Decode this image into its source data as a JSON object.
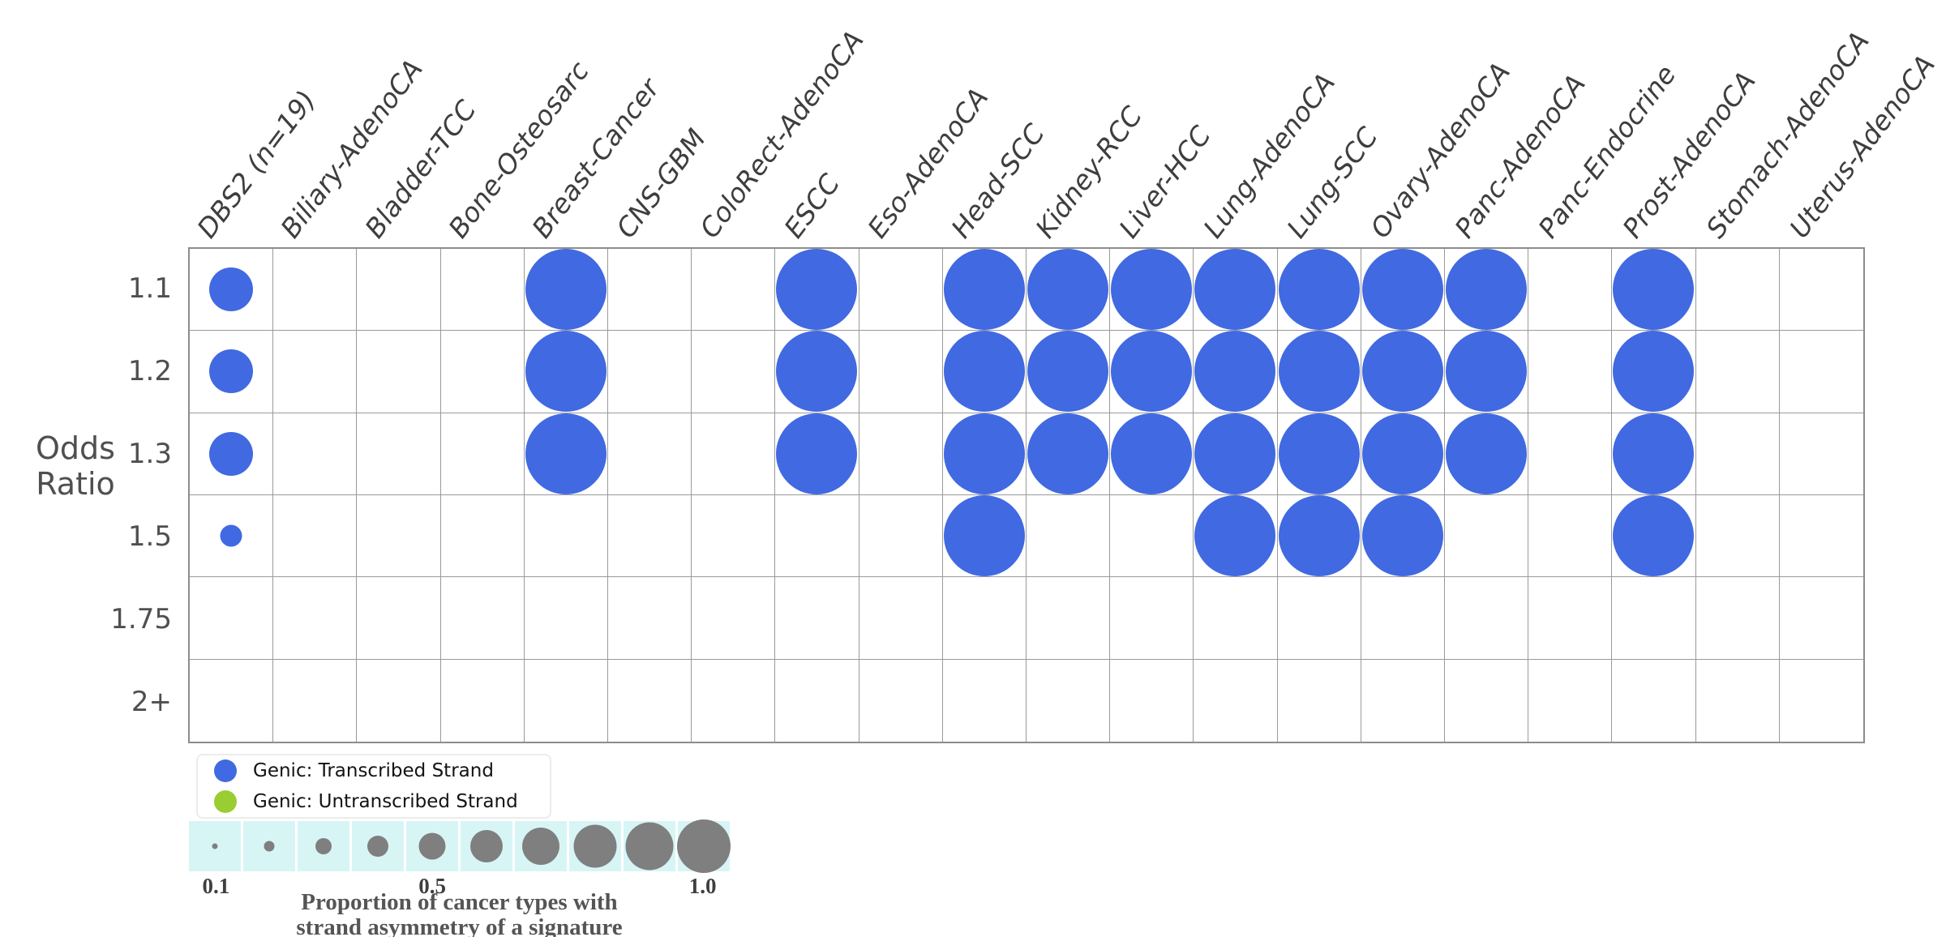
{
  "figure": {
    "ylabel_lines": [
      "Odds",
      "Ratio"
    ],
    "colors": {
      "transcribed": "#4169E1",
      "untranscribed": "#9ACD32",
      "size_circle": "#7F7F7F",
      "strip_bg": "#D8F5F6",
      "grid_line": "#9A9A9A",
      "grid_border": "#8C8C8C",
      "header_text": "#3E3E3E",
      "axis_text": "#4F4F4F",
      "caption_text": "#555555"
    }
  },
  "legend": {
    "items": [
      {
        "label": "Genic: Transcribed Strand",
        "color_key": "transcribed"
      },
      {
        "label": "Genic: Untranscribed Strand",
        "color_key": "untranscribed"
      }
    ]
  },
  "size_legend": {
    "values": [
      0.1,
      0.2,
      0.3,
      0.4,
      0.5,
      0.6,
      0.7,
      0.8,
      0.9,
      1.0
    ],
    "tick_labels": [
      {
        "text": "0.1",
        "index": 0
      },
      {
        "text": "0.5",
        "index": 4
      },
      {
        "text": "1.0",
        "index": 9
      }
    ],
    "caption_lines": [
      "Proportion of cancer types with",
      "strand asymmetry of a signature"
    ]
  },
  "chart_data": {
    "type": "bubble-matrix",
    "signature": "DBS2 (n=19)",
    "ylabel": "Odds Ratio",
    "bubble_series": "Genic: Transcribed Strand",
    "columns": [
      "DBS2 (n=19)",
      "Biliary-AdenoCA",
      "Bladder-TCC",
      "Bone-Osteosarc",
      "Breast-Cancer",
      "CNS-GBM",
      "ColoRect-AdenoCA",
      "ESCC",
      "Eso-AdenoCA",
      "Head-SCC",
      "Kidney-RCC",
      "Liver-HCC",
      "Lung-AdenoCA",
      "Lung-SCC",
      "Ovary-AdenoCA",
      "Panc-AdenoCA",
      "Panc-Endocrine",
      "Prost-AdenoCA",
      "Stomach-AdenoCA",
      "Uterus-AdenoCA"
    ],
    "rows": [
      "1.1",
      "1.2",
      "1.3",
      "1.5",
      "1.75",
      "2+"
    ],
    "cells": [
      [
        0.53,
        0,
        0,
        0,
        1,
        0,
        0,
        1,
        0,
        1,
        1,
        1,
        1,
        1,
        1,
        1,
        0,
        1,
        0,
        0
      ],
      [
        0.53,
        0,
        0,
        0,
        1,
        0,
        0,
        1,
        0,
        1,
        1,
        1,
        1,
        1,
        1,
        1,
        0,
        1,
        0,
        0
      ],
      [
        0.53,
        0,
        0,
        0,
        1,
        0,
        0,
        1,
        0,
        1,
        1,
        1,
        1,
        1,
        1,
        1,
        0,
        1,
        0,
        0
      ],
      [
        0.26,
        0,
        0,
        0,
        0,
        0,
        0,
        0,
        0,
        1,
        0,
        0,
        1,
        1,
        1,
        0,
        0,
        1,
        0,
        0
      ],
      [
        0,
        0,
        0,
        0,
        0,
        0,
        0,
        0,
        0,
        0,
        0,
        0,
        0,
        0,
        0,
        0,
        0,
        0,
        0,
        0
      ],
      [
        0,
        0,
        0,
        0,
        0,
        0,
        0,
        0,
        0,
        0,
        0,
        0,
        0,
        0,
        0,
        0,
        0,
        0,
        0,
        0
      ]
    ]
  }
}
